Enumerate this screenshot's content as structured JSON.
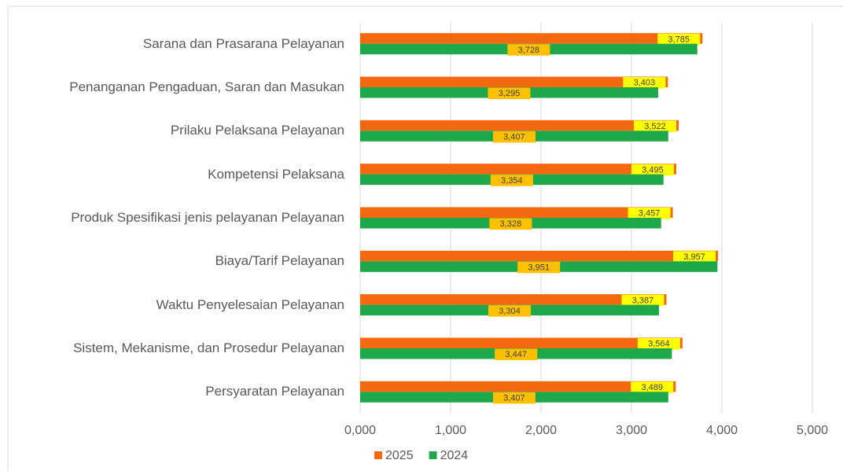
{
  "chart_data": {
    "type": "hbar",
    "categories": [
      "Sarana dan Prasarana Pelayanan",
      "Penanganan Pengaduan, Saran dan Masukan",
      "Prilaku Pelaksana Pelayanan",
      "Kompetensi Pelaksana",
      "Produk Spesifikasi jenis pelayanan Pelayanan",
      "Biaya/Tarif Pelayanan",
      "Waktu Penyelesaian Pelayanan",
      "Sistem, Mekanisme, dan Prosedur Pelayanan",
      "Persyaratan Pelayanan"
    ],
    "series": [
      {
        "name": "2025",
        "color": "#f4680f",
        "label_bg": "#ffff00",
        "values": [
          3.785,
          3.403,
          3.522,
          3.495,
          3.457,
          3.957,
          3.387,
          3.564,
          3.489
        ],
        "value_labels": [
          "3,785",
          "3,403",
          "3,522",
          "3,495",
          "3,457",
          "3,957",
          "3,387",
          "3,564",
          "3,489"
        ]
      },
      {
        "name": "2024",
        "color": "#1fa84a",
        "label_bg": "#ffc000",
        "values": [
          3.728,
          3.295,
          3.407,
          3.354,
          3.328,
          3.951,
          3.304,
          3.447,
          3.407
        ],
        "value_labels": [
          "3,728",
          "3,295",
          "3,407",
          "3,354",
          "3,328",
          "3,951",
          "3,304",
          "3,447",
          "3,407"
        ]
      }
    ],
    "xlim": [
      0,
      5
    ],
    "xticks": [
      {
        "value": 0,
        "label": "0,000"
      },
      {
        "value": 1,
        "label": "1,000"
      },
      {
        "value": 2,
        "label": "2,000"
      },
      {
        "value": 3,
        "label": "3,000"
      },
      {
        "value": 4,
        "label": "4,000"
      },
      {
        "value": 5,
        "label": "5,000"
      }
    ],
    "grid": true,
    "legend": "bottom"
  }
}
